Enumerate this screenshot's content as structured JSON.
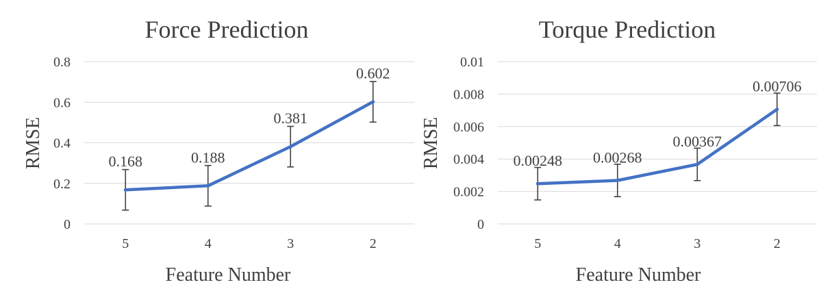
{
  "chart_data": [
    {
      "type": "line",
      "title": "Force Prediction",
      "xlabel": "Feature Number",
      "ylabel": "RMSE",
      "categories": [
        "5",
        "4",
        "3",
        "2"
      ],
      "y_ticks": [
        "0",
        "0.2",
        "0.4",
        "0.6",
        "0.8"
      ],
      "ylim": [
        0,
        0.8
      ],
      "grid": true,
      "series": [
        {
          "color": "#4472c4",
          "values": [
            0.168,
            0.188,
            0.381,
            0.602
          ],
          "labels": [
            "0.168",
            "0.188",
            "0.381",
            "0.602"
          ],
          "error": [
            0.1,
            0.1,
            0.1,
            0.1
          ]
        }
      ]
    },
    {
      "type": "line",
      "title": "Torque Prediction",
      "xlabel": "Feature Number",
      "ylabel": "RMSE",
      "categories": [
        "5",
        "4",
        "3",
        "2"
      ],
      "y_ticks": [
        "0",
        "0.002",
        "0.004",
        "0.006",
        "0.008",
        "0.01"
      ],
      "ylim": [
        0,
        0.01
      ],
      "grid": true,
      "series": [
        {
          "color": "#4472c4",
          "values": [
            0.00248,
            0.00268,
            0.00367,
            0.00706
          ],
          "labels": [
            "0.00248",
            "0.00268",
            "0.00367",
            "0.00706"
          ],
          "error": [
            0.001,
            0.001,
            0.001,
            0.001
          ]
        }
      ]
    }
  ]
}
